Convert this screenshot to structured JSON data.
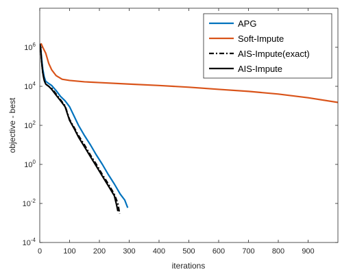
{
  "chart_data": {
    "type": "line",
    "title": "",
    "xlabel": "iterations",
    "ylabel": "objective - best",
    "xlim": [
      0,
      1000
    ],
    "ylim_log10": [
      -4,
      8
    ],
    "yscale": "log",
    "grid": false,
    "legend_position": "top-right",
    "x_ticks": [
      0,
      100,
      200,
      300,
      400,
      500,
      600,
      700,
      800,
      900
    ],
    "y_ticks": [
      {
        "base": "10",
        "exp": "-4",
        "log": -4
      },
      {
        "base": "10",
        "exp": "-2",
        "log": -2
      },
      {
        "base": "10",
        "exp": "0",
        "log": 0
      },
      {
        "base": "10",
        "exp": "2",
        "log": 2
      },
      {
        "base": "10",
        "exp": "4",
        "log": 4
      },
      {
        "base": "10",
        "exp": "6",
        "log": 6
      }
    ],
    "series": [
      {
        "name": "APG",
        "color": "#0072BD",
        "dash": "solid",
        "points": [
          [
            0,
            1500000.0
          ],
          [
            3,
            1000000.0
          ],
          [
            6,
            300000.0
          ],
          [
            10,
            80000.0
          ],
          [
            15,
            30000.0
          ],
          [
            20,
            18000.0
          ],
          [
            30,
            14000.0
          ],
          [
            40,
            11000.0
          ],
          [
            55,
            6000.0
          ],
          [
            70,
            3000.0
          ],
          [
            85,
            1800.0
          ],
          [
            100,
            900
          ],
          [
            115,
            300
          ],
          [
            130,
            100
          ],
          [
            150,
            30
          ],
          [
            170,
            10
          ],
          [
            190,
            3
          ],
          [
            210,
            1
          ],
          [
            230,
            0.3
          ],
          [
            250,
            0.1
          ],
          [
            270,
            0.03
          ],
          [
            285,
            0.015
          ],
          [
            295,
            0.006
          ]
        ]
      },
      {
        "name": "Soft-Impute",
        "color": "#D95319",
        "dash": "solid",
        "points": [
          [
            0,
            1200000.0
          ],
          [
            5,
            1500000.0
          ],
          [
            10,
            1000000.0
          ],
          [
            20,
            500000.0
          ],
          [
            30,
            150000.0
          ],
          [
            40,
            70000.0
          ],
          [
            55,
            35000.0
          ],
          [
            75,
            23000.0
          ],
          [
            100,
            20000.0
          ],
          [
            150,
            17000.0
          ],
          [
            200,
            15500.0
          ],
          [
            300,
            13000.0
          ],
          [
            400,
            11000.0
          ],
          [
            500,
            9000.0
          ],
          [
            600,
            7000.0
          ],
          [
            700,
            5500.0
          ],
          [
            800,
            4000.0
          ],
          [
            900,
            2600.0
          ],
          [
            1000,
            1500.0
          ]
        ]
      },
      {
        "name": "AIS-Impute(exact)",
        "color": "#000000",
        "dash": "dashdot",
        "points": [
          [
            0,
            1500000.0
          ],
          [
            3,
            900000.0
          ],
          [
            6,
            200000.0
          ],
          [
            10,
            50000.0
          ],
          [
            15,
            20000.0
          ],
          [
            20,
            13000.0
          ],
          [
            30,
            10000.0
          ],
          [
            40,
            8000.0
          ],
          [
            55,
            4000.0
          ],
          [
            70,
            2000.0
          ],
          [
            85,
            1000.0
          ],
          [
            100,
            200
          ],
          [
            115,
            80
          ],
          [
            130,
            30
          ],
          [
            150,
            10
          ],
          [
            170,
            3
          ],
          [
            190,
            1
          ],
          [
            210,
            0.3
          ],
          [
            230,
            0.1
          ],
          [
            250,
            0.03
          ],
          [
            262,
            0.01
          ],
          [
            268,
            0.003
          ]
        ]
      },
      {
        "name": "AIS-Impute",
        "color": "#000000",
        "dash": "solid",
        "points": [
          [
            0,
            1500000.0
          ],
          [
            3,
            900000.0
          ],
          [
            6,
            200000.0
          ],
          [
            10,
            50000.0
          ],
          [
            15,
            20000.0
          ],
          [
            20,
            13000.0
          ],
          [
            30,
            10000.0
          ],
          [
            40,
            7000.0
          ],
          [
            55,
            3500.0
          ],
          [
            70,
            1800.0
          ],
          [
            85,
            900
          ],
          [
            100,
            180
          ],
          [
            115,
            70
          ],
          [
            130,
            25
          ],
          [
            150,
            8
          ],
          [
            170,
            2.5
          ],
          [
            190,
            0.8
          ],
          [
            210,
            0.25
          ],
          [
            230,
            0.08
          ],
          [
            250,
            0.025
          ],
          [
            258,
            0.008
          ],
          [
            262,
            0.004
          ]
        ]
      }
    ]
  }
}
